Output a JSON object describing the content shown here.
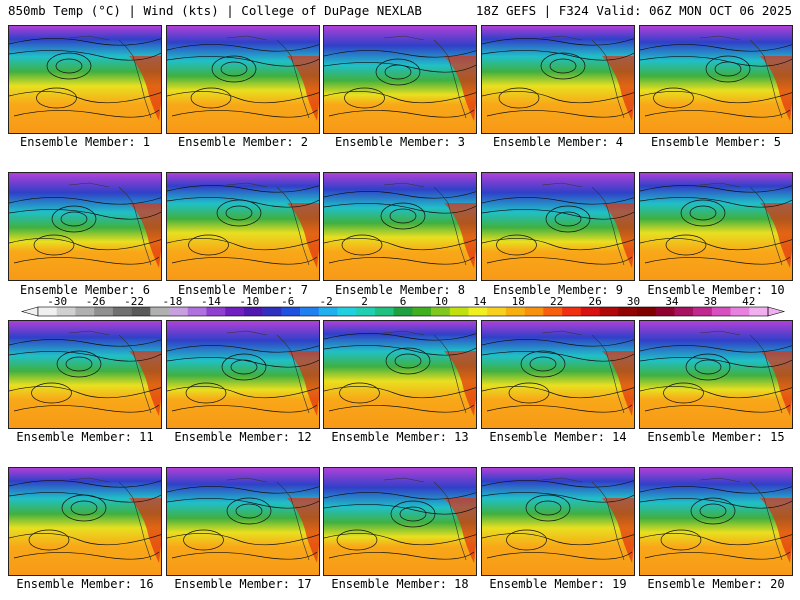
{
  "header": {
    "left": "850mb Temp (°C) | Wind (kts) | College of DuPage NEXLAB",
    "right": "18Z GEFS | F324 Valid: 06Z MON OCT 06 2025"
  },
  "panels": [
    {
      "label": "Ensemble Member: 1"
    },
    {
      "label": "Ensemble Member: 2"
    },
    {
      "label": "Ensemble Member: 3"
    },
    {
      "label": "Ensemble Member: 4"
    },
    {
      "label": "Ensemble Member: 5"
    },
    {
      "label": "Ensemble Member: 6"
    },
    {
      "label": "Ensemble Member: 7"
    },
    {
      "label": "Ensemble Member: 8"
    },
    {
      "label": "Ensemble Member: 9"
    },
    {
      "label": "Ensemble Member: 10"
    },
    {
      "label": "Ensemble Member: 11"
    },
    {
      "label": "Ensemble Member: 12"
    },
    {
      "label": "Ensemble Member: 13"
    },
    {
      "label": "Ensemble Member: 14"
    },
    {
      "label": "Ensemble Member: 15"
    },
    {
      "label": "Ensemble Member: 16"
    },
    {
      "label": "Ensemble Member: 17"
    },
    {
      "label": "Ensemble Member: 18"
    },
    {
      "label": "Ensemble Member: 19"
    },
    {
      "label": "Ensemble Member: 20"
    }
  ],
  "colorbar": {
    "ticks": [
      "-30",
      "-26",
      "-22",
      "-18",
      "-14",
      "-10",
      "-6",
      "-2",
      "2",
      "6",
      "10",
      "14",
      "18",
      "22",
      "26",
      "30",
      "34",
      "38",
      "42"
    ],
    "colors": [
      "#f0f0f0",
      "#d0d0d0",
      "#b0b0b0",
      "#909090",
      "#707070",
      "#5a5a5a",
      "#b0b0b0",
      "#c8a0e0",
      "#b070e0",
      "#9040d0",
      "#7020c0",
      "#5018b0",
      "#3030c0",
      "#2050e0",
      "#2080f0",
      "#20b0f0",
      "#20d0e0",
      "#20d0b0",
      "#20c080",
      "#20a040",
      "#40b020",
      "#80c820",
      "#c0e010",
      "#f0f020",
      "#f8d020",
      "#f8b010",
      "#f89010",
      "#f86010",
      "#f03010",
      "#d81010",
      "#b00808",
      "#900404",
      "#800000",
      "#900030",
      "#a81060",
      "#c02890",
      "#d850c0",
      "#e880e0",
      "#f0b0f0"
    ]
  }
}
